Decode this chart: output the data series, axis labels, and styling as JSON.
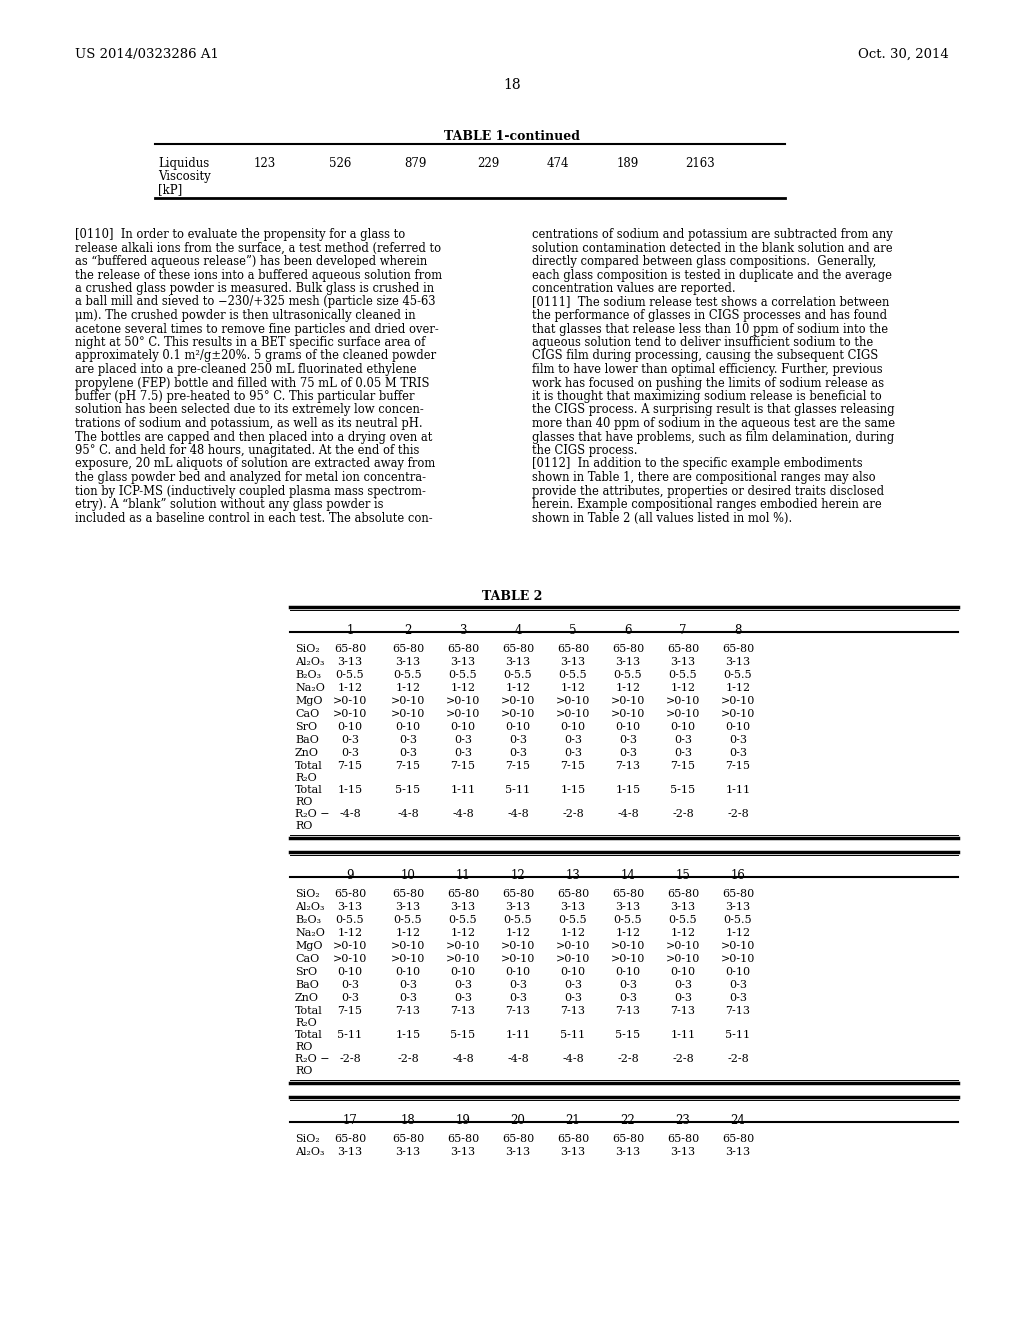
{
  "page_left_text": "US 2014/0323286 A1",
  "page_right_text": "Oct. 30, 2014",
  "page_number": "18",
  "table1_continued_title": "TABLE 1-continued",
  "table1_values": [
    "123",
    "526",
    "879",
    "229",
    "474",
    "189",
    "2163"
  ],
  "left_lines": [
    "[0110]  In order to evaluate the propensity for a glass to",
    "release alkali ions from the surface, a test method (referred to",
    "as “buffered aqueous release”) has been developed wherein",
    "the release of these ions into a buffered aqueous solution from",
    "a crushed glass powder is measured. Bulk glass is crushed in",
    "a ball mill and sieved to −230/+325 mesh (particle size 45-63",
    "μm). The crushed powder is then ultrasonically cleaned in",
    "acetone several times to remove fine particles and dried over-",
    "night at 50° C. This results in a BET specific surface area of",
    "approximately 0.1 m²/g±20%. 5 grams of the cleaned powder",
    "are placed into a pre-cleaned 250 mL fluorinated ethylene",
    "propylene (FEP) bottle and filled with 75 mL of 0.05 M TRIS",
    "buffer (pH 7.5) pre-heated to 95° C. This particular buffer",
    "solution has been selected due to its extremely low concen-",
    "trations of sodium and potassium, as well as its neutral pH.",
    "The bottles are capped and then placed into a drying oven at",
    "95° C. and held for 48 hours, unagitated. At the end of this",
    "exposure, 20 mL aliquots of solution are extracted away from",
    "the glass powder bed and analyzed for metal ion concentra-",
    "tion by ICP-MS (inductively coupled plasma mass spectrom-",
    "etry). A “blank” solution without any glass powder is",
    "included as a baseline control in each test. The absolute con-"
  ],
  "right_lines": [
    "centrations of sodium and potassium are subtracted from any",
    "solution contamination detected in the blank solution and are",
    "directly compared between glass compositions.  Generally,",
    "each glass composition is tested in duplicate and the average",
    "concentration values are reported.",
    "[0111]  The sodium release test shows a correlation between",
    "the performance of glasses in CIGS processes and has found",
    "that glasses that release less than 10 ppm of sodium into the",
    "aqueous solution tend to deliver insufficient sodium to the",
    "CIGS film during processing, causing the subsequent CIGS",
    "film to have lower than optimal efficiency. Further, previous",
    "work has focused on pushing the limits of sodium release as",
    "it is thought that maximizing sodium release is beneficial to",
    "the CIGS process. A surprising result is that glasses releasing",
    "more than 40 ppm of sodium in the aqueous test are the same",
    "glasses that have problems, such as film delamination, during",
    "the CIGS process.",
    "[0112]  In addition to the specific example embodiments",
    "shown in Table 1, there are compositional ranges may also",
    "provide the attributes, properties or desired traits disclosed",
    "herein. Example compositional ranges embodied herein are",
    "shown in Table 2 (all values listed in mol %)."
  ],
  "table2_title": "TABLE 2",
  "table2_section1_headers": [
    "",
    "1",
    "2",
    "3",
    "4",
    "5",
    "6",
    "7",
    "8"
  ],
  "table2_section1_rows": [
    [
      "SiO₂",
      "65-80",
      "65-80",
      "65-80",
      "65-80",
      "65-80",
      "65-80",
      "65-80",
      "65-80"
    ],
    [
      "Al₂O₃",
      "3-13",
      "3-13",
      "3-13",
      "3-13",
      "3-13",
      "3-13",
      "3-13",
      "3-13"
    ],
    [
      "B₂O₃",
      "0-5.5",
      "0-5.5",
      "0-5.5",
      "0-5.5",
      "0-5.5",
      "0-5.5",
      "0-5.5",
      "0-5.5"
    ],
    [
      "Na₂O",
      "1-12",
      "1-12",
      "1-12",
      "1-12",
      "1-12",
      "1-12",
      "1-12",
      "1-12"
    ],
    [
      "MgO",
      ">0-10",
      ">0-10",
      ">0-10",
      ">0-10",
      ">0-10",
      ">0-10",
      ">0-10",
      ">0-10"
    ],
    [
      "CaO",
      ">0-10",
      ">0-10",
      ">0-10",
      ">0-10",
      ">0-10",
      ">0-10",
      ">0-10",
      ">0-10"
    ],
    [
      "SrO",
      "0-10",
      "0-10",
      "0-10",
      "0-10",
      "0-10",
      "0-10",
      "0-10",
      "0-10"
    ],
    [
      "BaO",
      "0-3",
      "0-3",
      "0-3",
      "0-3",
      "0-3",
      "0-3",
      "0-3",
      "0-3"
    ],
    [
      "ZnO",
      "0-3",
      "0-3",
      "0-3",
      "0-3",
      "0-3",
      "0-3",
      "0-3",
      "0-3"
    ],
    [
      "Total\nR₂O",
      "7-15",
      "7-15",
      "7-15",
      "7-15",
      "7-15",
      "7-13",
      "7-15",
      "7-15"
    ],
    [
      "Total\nRO",
      "1-15",
      "5-15",
      "1-11",
      "5-11",
      "1-15",
      "1-15",
      "5-15",
      "1-11"
    ],
    [
      "R₂O −\nRO",
      "-4-8",
      "-4-8",
      "-4-8",
      "-4-8",
      "-2-8",
      "-4-8",
      "-2-8",
      "-2-8"
    ]
  ],
  "table2_section2_headers": [
    "",
    "9",
    "10",
    "11",
    "12",
    "13",
    "14",
    "15",
    "16"
  ],
  "table2_section2_rows": [
    [
      "SiO₂",
      "65-80",
      "65-80",
      "65-80",
      "65-80",
      "65-80",
      "65-80",
      "65-80",
      "65-80"
    ],
    [
      "Al₂O₃",
      "3-13",
      "3-13",
      "3-13",
      "3-13",
      "3-13",
      "3-13",
      "3-13",
      "3-13"
    ],
    [
      "B₂O₃",
      "0-5.5",
      "0-5.5",
      "0-5.5",
      "0-5.5",
      "0-5.5",
      "0-5.5",
      "0-5.5",
      "0-5.5"
    ],
    [
      "Na₂O",
      "1-12",
      "1-12",
      "1-12",
      "1-12",
      "1-12",
      "1-12",
      "1-12",
      "1-12"
    ],
    [
      "MgO",
      ">0-10",
      ">0-10",
      ">0-10",
      ">0-10",
      ">0-10",
      ">0-10",
      ">0-10",
      ">0-10"
    ],
    [
      "CaO",
      ">0-10",
      ">0-10",
      ">0-10",
      ">0-10",
      ">0-10",
      ">0-10",
      ">0-10",
      ">0-10"
    ],
    [
      "SrO",
      "0-10",
      "0-10",
      "0-10",
      "0-10",
      "0-10",
      "0-10",
      "0-10",
      "0-10"
    ],
    [
      "BaO",
      "0-3",
      "0-3",
      "0-3",
      "0-3",
      "0-3",
      "0-3",
      "0-3",
      "0-3"
    ],
    [
      "ZnO",
      "0-3",
      "0-3",
      "0-3",
      "0-3",
      "0-3",
      "0-3",
      "0-3",
      "0-3"
    ],
    [
      "Total\nR₂O",
      "7-15",
      "7-13",
      "7-13",
      "7-13",
      "7-13",
      "7-13",
      "7-13",
      "7-13"
    ],
    [
      "Total\nRO",
      "5-11",
      "1-15",
      "5-15",
      "1-11",
      "5-11",
      "5-15",
      "1-11",
      "5-11"
    ],
    [
      "R₂O −\nRO",
      "-2-8",
      "-2-8",
      "-4-8",
      "-4-8",
      "-4-8",
      "-2-8",
      "-2-8",
      "-2-8"
    ]
  ],
  "table2_section3_headers": [
    "",
    "17",
    "18",
    "19",
    "20",
    "21",
    "22",
    "23",
    "24"
  ],
  "table2_section3_rows": [
    [
      "SiO₂",
      "65-80",
      "65-80",
      "65-80",
      "65-80",
      "65-80",
      "65-80",
      "65-80",
      "65-80"
    ],
    [
      "Al₂O₃",
      "3-13",
      "3-13",
      "3-13",
      "3-13",
      "3-13",
      "3-13",
      "3-13",
      "3-13"
    ]
  ]
}
